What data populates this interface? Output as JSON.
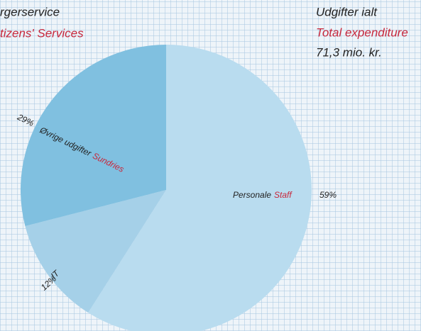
{
  "chart_data": {
    "type": "pie",
    "title_left": "rgerservice",
    "subtitle_left": "tizens' Services",
    "title_right": "Udgifter ialt",
    "subtitle_right": "Total expenditure",
    "total": "71,3 mio. kr.",
    "categories": [
      "Personale",
      "IT",
      "Øvrige udgifter"
    ],
    "categories_en": [
      "Staff",
      null,
      "Sundries"
    ],
    "values": [
      59,
      12,
      29
    ],
    "value_labels": [
      "59%",
      "12%",
      "29%"
    ],
    "colors": [
      "#b9dcef",
      "#a5d0e8",
      "#80c0e0"
    ]
  }
}
